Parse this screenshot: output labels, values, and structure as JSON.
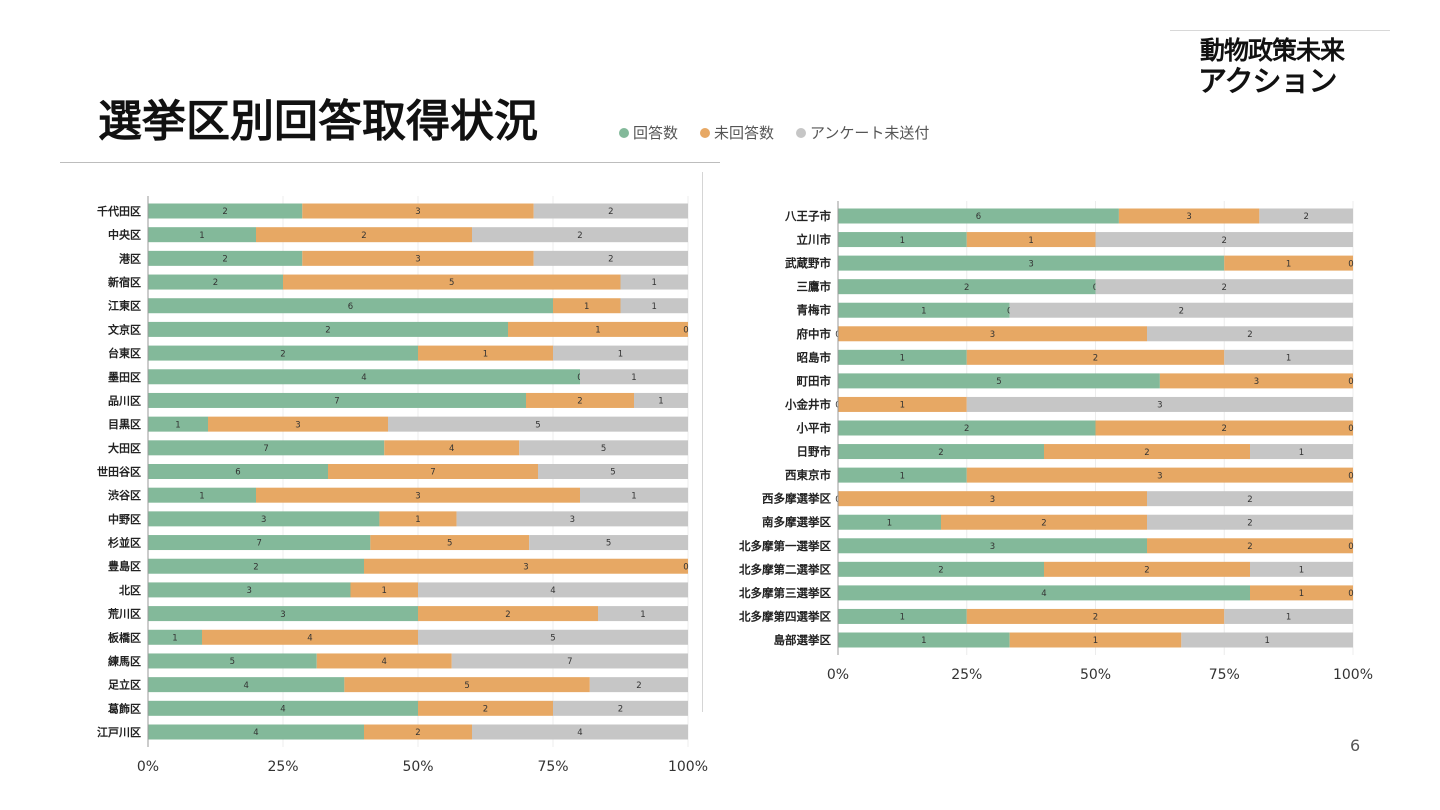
{
  "slide": {
    "title": "選挙区別回答取得状況",
    "page_number": "6"
  },
  "legend": [
    {
      "label": "回答数",
      "color": "#83b99a"
    },
    {
      "label": "未回答数",
      "color": "#e7a864"
    },
    {
      "label": "アンケート未送付",
      "color": "#c6c6c6"
    }
  ],
  "logo": {
    "line1": "動物政策未来",
    "line2": "アクション"
  },
  "chart_data": [
    {
      "type": "bar",
      "orientation": "horizontal",
      "stacked": "percent",
      "title": "",
      "xlabel": "",
      "ylabel": "",
      "xlim": [
        0,
        100
      ],
      "xticks": [
        "0%",
        "25%",
        "50%",
        "75%",
        "100%"
      ],
      "categories": [
        "千代田区",
        "中央区",
        "港区",
        "新宿区",
        "江東区",
        "文京区",
        "台東区",
        "墨田区",
        "品川区",
        "目黒区",
        "大田区",
        "世田谷区",
        "渋谷区",
        "中野区",
        "杉並区",
        "豊島区",
        "北区",
        "荒川区",
        "板橋区",
        "練馬区",
        "足立区",
        "葛飾区",
        "江戸川区"
      ],
      "series": [
        {
          "name": "回答数",
          "color": "#83b99a",
          "values": [
            2,
            1,
            2,
            2,
            6,
            2,
            2,
            4,
            7,
            1,
            7,
            6,
            1,
            3,
            7,
            2,
            3,
            3,
            1,
            5,
            4,
            4,
            4
          ]
        },
        {
          "name": "未回答数",
          "color": "#e7a864",
          "values": [
            3,
            2,
            3,
            5,
            1,
            1,
            1,
            0,
            2,
            3,
            4,
            7,
            3,
            1,
            5,
            3,
            1,
            2,
            4,
            4,
            5,
            2,
            2
          ]
        },
        {
          "name": "アンケート未送付",
          "color": "#c6c6c6",
          "values": [
            2,
            2,
            2,
            1,
            1,
            0,
            1,
            1,
            1,
            5,
            5,
            5,
            1,
            3,
            5,
            0,
            4,
            1,
            5,
            7,
            2,
            2,
            4
          ]
        }
      ]
    },
    {
      "type": "bar",
      "orientation": "horizontal",
      "stacked": "percent",
      "title": "",
      "xlabel": "",
      "ylabel": "",
      "xlim": [
        0,
        100
      ],
      "xticks": [
        "0%",
        "25%",
        "50%",
        "75%",
        "100%"
      ],
      "categories": [
        "八王子市",
        "立川市",
        "武蔵野市",
        "三鷹市",
        "青梅市",
        "府中市",
        "昭島市",
        "町田市",
        "小金井市",
        "小平市",
        "日野市",
        "西東京市",
        "西多摩選挙区",
        "南多摩選挙区",
        "北多摩第一選挙区",
        "北多摩第二選挙区",
        "北多摩第三選挙区",
        "北多摩第四選挙区",
        "島部選挙区"
      ],
      "series": [
        {
          "name": "回答数",
          "color": "#83b99a",
          "values": [
            6,
            1,
            3,
            2,
            1,
            0,
            1,
            5,
            0,
            2,
            2,
            1,
            0,
            1,
            3,
            2,
            4,
            1,
            1
          ]
        },
        {
          "name": "未回答数",
          "color": "#e7a864",
          "values": [
            3,
            1,
            1,
            0,
            0,
            3,
            2,
            3,
            1,
            2,
            2,
            3,
            3,
            2,
            2,
            2,
            1,
            2,
            1
          ]
        },
        {
          "name": "アンケート未送付",
          "color": "#c6c6c6",
          "values": [
            2,
            2,
            0,
            2,
            2,
            2,
            1,
            0,
            3,
            0,
            1,
            0,
            2,
            2,
            0,
            1,
            0,
            1,
            1
          ]
        }
      ]
    }
  ]
}
